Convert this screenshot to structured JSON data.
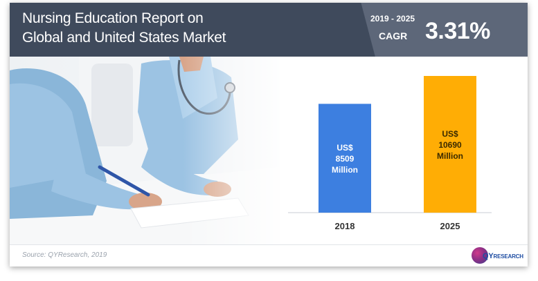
{
  "header": {
    "title_line1": "Nursing Education Report on",
    "title_line2": "Global and United States Market",
    "cagr_period": "2019 - 2025",
    "cagr_label": "CAGR",
    "cagr_value": "3.31%"
  },
  "chart_data": {
    "type": "bar",
    "categories": [
      "2018",
      "2025"
    ],
    "values": [
      8509,
      10690
    ],
    "value_labels": [
      [
        "US$",
        "8509",
        "Million"
      ],
      [
        "US$",
        "10690",
        "Million"
      ]
    ],
    "colors": [
      "#3d7fe0",
      "#ffad05"
    ],
    "unit": "US$ Million",
    "grid": false
  },
  "footer": {
    "source": "Source: QYResearch, 2019",
    "logo_qy": "QY",
    "logo_research": "RESEARCH"
  },
  "photo": {
    "subject": "healthcare-workers-illustration"
  }
}
